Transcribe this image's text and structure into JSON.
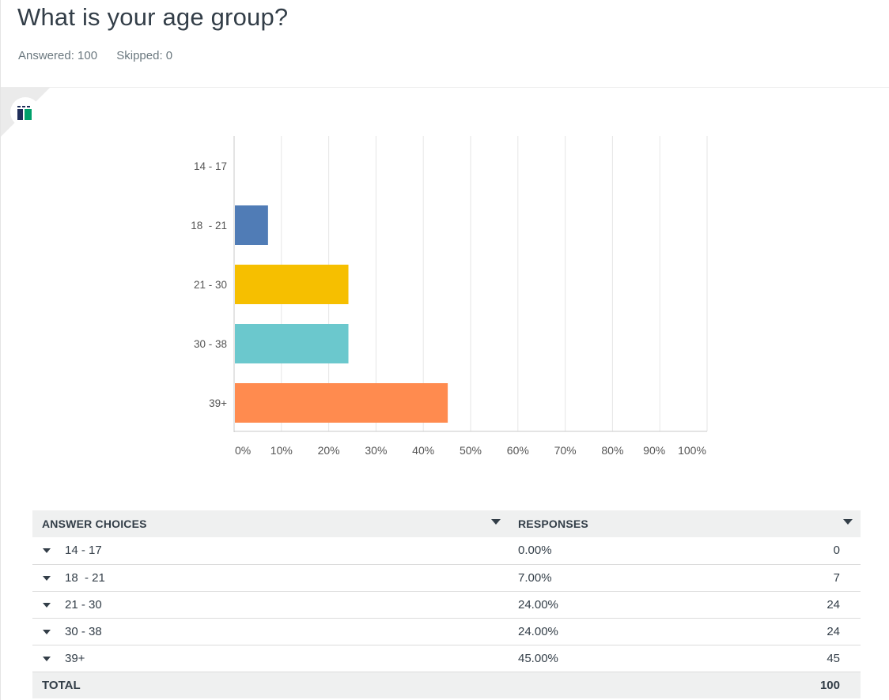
{
  "question": {
    "title": "What is your age group?",
    "answered": "Answered: 100",
    "skipped": "Skipped: 0"
  },
  "chart_data": {
    "type": "bar",
    "orientation": "horizontal",
    "categories": [
      "14 - 17",
      "18  - 21",
      "21 - 30",
      "30 - 38",
      "39+"
    ],
    "values": [
      0,
      7,
      24,
      24,
      45
    ],
    "colors": [
      "#f0f0f0",
      "#507cb6",
      "#f6bf00",
      "#6bc8cd",
      "#ff8b4f"
    ],
    "xlim": [
      0,
      100
    ],
    "x_ticks": [
      "0%",
      "10%",
      "20%",
      "30%",
      "40%",
      "50%",
      "60%",
      "70%",
      "80%",
      "90%",
      "100%"
    ],
    "grid": true
  },
  "table": {
    "headers": {
      "choices": "ANSWER CHOICES",
      "responses": "RESPONSES"
    },
    "rows": [
      {
        "choice": "14 - 17",
        "percent": "0.00%",
        "count": "0"
      },
      {
        "choice": "18  - 21",
        "percent": "7.00%",
        "count": "7"
      },
      {
        "choice": "21 - 30",
        "percent": "24.00%",
        "count": "24"
      },
      {
        "choice": "30 - 38",
        "percent": "24.00%",
        "count": "24"
      },
      {
        "choice": "39+",
        "percent": "45.00%",
        "count": "45"
      }
    ],
    "total": {
      "label": "TOTAL",
      "count": "100"
    }
  }
}
